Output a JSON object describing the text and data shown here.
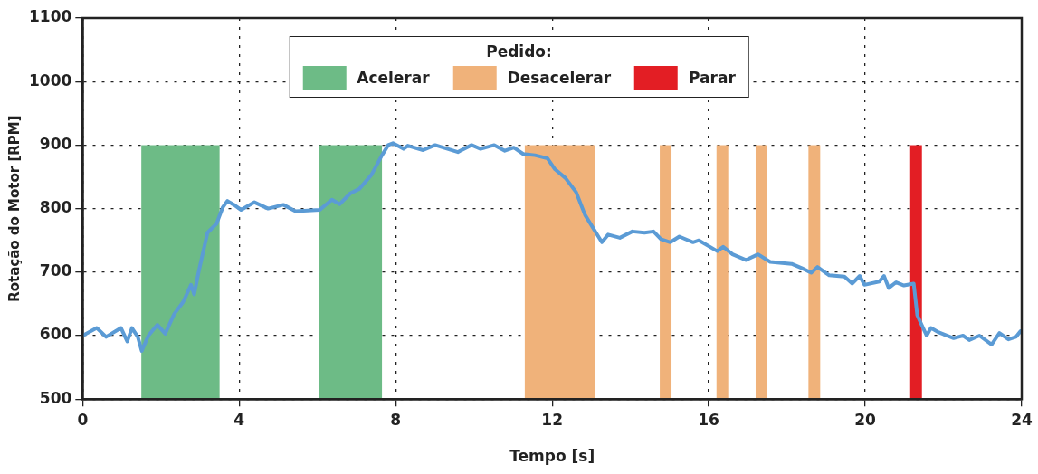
{
  "chart_data": {
    "type": "line",
    "xlabel": "Tempo [s]",
    "ylabel": "Rotação do Motor [RPM]",
    "legend_title": "Pedido:",
    "legend": "top",
    "grid": true,
    "marker": "none",
    "line_style": "solid",
    "xlim": [
      0,
      24
    ],
    "xticks": [
      0,
      4,
      8,
      12,
      16,
      20,
      24
    ],
    "ylim": [
      500,
      1100
    ],
    "yticks": [
      500,
      600,
      700,
      800,
      900,
      1000,
      1100
    ],
    "bands": [
      {
        "axis": "x",
        "from": 1.5,
        "to": 3.5,
        "label": "Acelerar",
        "color": "#6dbb86"
      },
      {
        "axis": "x",
        "from": 6.05,
        "to": 7.65,
        "color": "#6dbb86"
      },
      {
        "axis": "x",
        "from": 11.3,
        "to": 13.1,
        "label": "Desacelerar",
        "color": "#f0b27a"
      },
      {
        "axis": "x",
        "from": 14.75,
        "to": 15.05,
        "color": "#f0b27a"
      },
      {
        "axis": "x",
        "from": 16.2,
        "to": 16.5,
        "color": "#f0b27a"
      },
      {
        "axis": "x",
        "from": 17.2,
        "to": 17.5,
        "color": "#f0b27a"
      },
      {
        "axis": "x",
        "from": 18.55,
        "to": 18.85,
        "color": "#f0b27a"
      },
      {
        "axis": "x",
        "from": 21.15,
        "to": 21.45,
        "label": "Parar",
        "color": "#e31e24"
      }
    ],
    "series": [
      {
        "color": "#5b9bd5",
        "x": [
          0.0,
          0.36,
          0.6,
          0.98,
          1.14,
          1.26,
          1.41,
          1.51,
          1.68,
          1.91,
          2.11,
          2.34,
          2.57,
          2.77,
          2.85,
          2.96,
          3.19,
          3.42,
          3.58,
          3.7,
          3.89,
          4.05,
          4.39,
          4.74,
          5.13,
          5.44,
          6.06,
          6.37,
          6.57,
          6.84,
          7.07,
          7.38,
          7.65,
          7.81,
          7.93,
          8.2,
          8.31,
          8.7,
          9.01,
          9.59,
          9.94,
          10.17,
          10.52,
          10.79,
          11.02,
          11.26,
          11.56,
          11.88,
          12.07,
          12.34,
          12.61,
          12.84,
          13.12,
          13.27,
          13.43,
          13.73,
          14.05,
          14.36,
          14.59,
          14.78,
          15.02,
          15.25,
          15.6,
          15.75,
          16.22,
          16.37,
          16.61,
          16.95,
          17.26,
          17.57,
          18.12,
          18.39,
          18.62,
          18.78,
          19.08,
          19.47,
          19.67,
          19.86,
          19.98,
          20.36,
          20.48,
          20.6,
          20.79,
          20.99,
          21.24,
          21.33,
          21.57,
          21.68,
          21.88,
          22.26,
          22.5,
          22.66,
          22.92,
          23.23,
          23.43,
          23.66,
          23.85,
          23.97
        ],
        "values": [
          600,
          612,
          598,
          612,
          591,
          612,
          598,
          576,
          600,
          617,
          603,
          634,
          653,
          680,
          665,
          699,
          762,
          776,
          802,
          812,
          805,
          798,
          810,
          800,
          806,
          796,
          798,
          814,
          807,
          824,
          831,
          853,
          884,
          900,
          903,
          894,
          899,
          892,
          900,
          889,
          900,
          894,
          900,
          891,
          896,
          886,
          884,
          879,
          862,
          848,
          826,
          790,
          762,
          747,
          759,
          754,
          764,
          762,
          764,
          752,
          747,
          756,
          747,
          750,
          733,
          740,
          728,
          719,
          728,
          716,
          713,
          706,
          699,
          708,
          695,
          693,
          682,
          694,
          680,
          685,
          694,
          675,
          684,
          679,
          682,
          632,
          600,
          612,
          605,
          596,
          600,
          593,
          600,
          586,
          604,
          594,
          598,
          607
        ]
      }
    ]
  }
}
